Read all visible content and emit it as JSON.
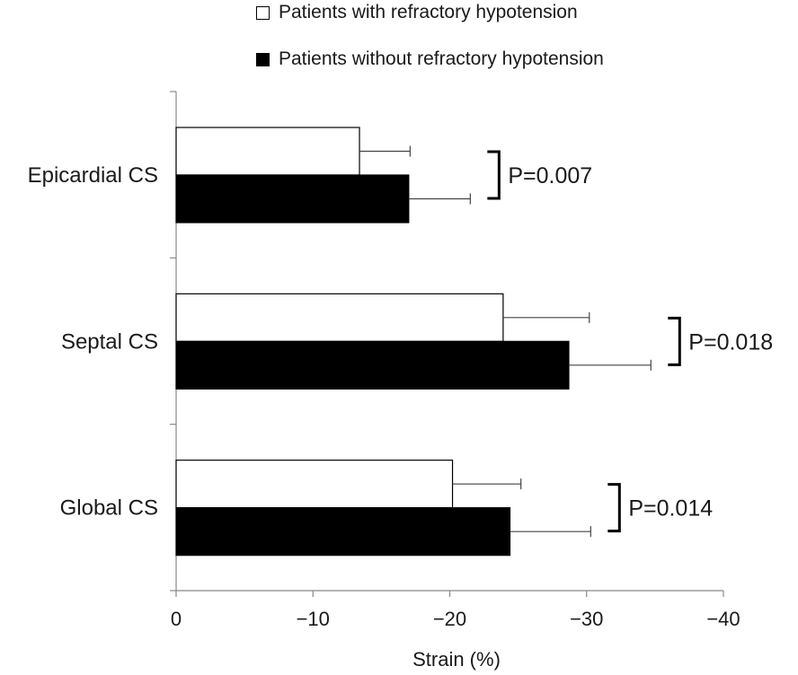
{
  "chart_data": {
    "type": "bar",
    "orientation": "horizontal",
    "categories": [
      "Epicardial CS",
      "Septal CS",
      "Global CS"
    ],
    "series": [
      {
        "name": "Patients with refractory hypotension",
        "values": [
          -13.4,
          -23.9,
          -20.2
        ],
        "errors": [
          3.7,
          6.3,
          5.0
        ],
        "color": "#ffffff"
      },
      {
        "name": "Patients without refractory hypotension",
        "values": [
          -17.0,
          -28.7,
          -24.4
        ],
        "errors": [
          4.5,
          6.0,
          5.9
        ],
        "color": "#000000"
      }
    ],
    "annotations": [
      "P=0.007",
      "P=0.018",
      "P=0.014"
    ],
    "xlabel": "Strain (%)",
    "ylabel": "",
    "xlim": [
      0,
      -40
    ],
    "xticks": [
      0,
      -10,
      -20,
      -30,
      -40
    ],
    "xtick_labels": [
      "0",
      "−10",
      "−20",
      "−30",
      "−40"
    ],
    "grid": false,
    "legend_position": "top"
  }
}
